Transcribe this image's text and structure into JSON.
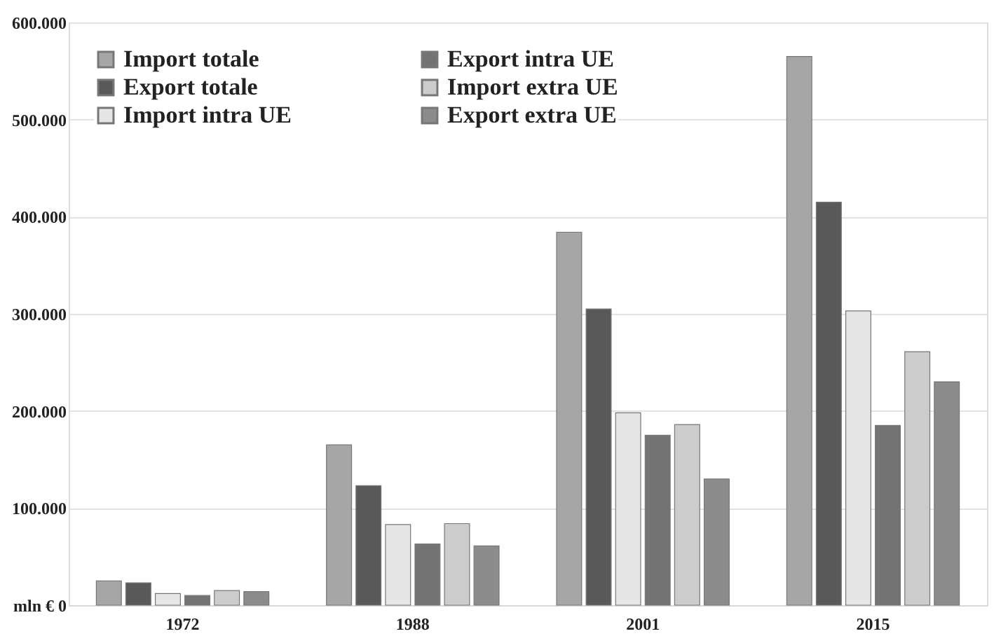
{
  "chart_data": {
    "type": "bar",
    "categories": [
      "1972",
      "1988",
      "2001",
      "2015"
    ],
    "series": [
      {
        "name": "Import totale",
        "color": "#a6a6a6",
        "values": [
          25000,
          165000,
          384000,
          565000
        ]
      },
      {
        "name": "Export totale",
        "color": "#595959",
        "values": [
          23000,
          123000,
          305000,
          415000
        ]
      },
      {
        "name": "Import intra UE",
        "color": "#e6e6e6",
        "values": [
          12000,
          83000,
          198000,
          303000
        ]
      },
      {
        "name": "Export intra UE",
        "color": "#737373",
        "values": [
          10000,
          63000,
          175000,
          185000
        ]
      },
      {
        "name": "Import extra UE",
        "color": "#cccccc",
        "values": [
          15000,
          84000,
          186000,
          261000
        ]
      },
      {
        "name": "Export extra UE",
        "color": "#8c8c8c",
        "values": [
          14000,
          61000,
          130000,
          230000
        ]
      }
    ],
    "ylim": [
      0,
      600000
    ],
    "yticks": [
      {
        "value": 0,
        "label": "mln € 0"
      },
      {
        "value": 100000,
        "label": "100.000"
      },
      {
        "value": 200000,
        "label": "200.000"
      },
      {
        "value": 300000,
        "label": "300.000"
      },
      {
        "value": 400000,
        "label": "400.000"
      },
      {
        "value": 500000,
        "label": "500.000"
      },
      {
        "value": 600000,
        "label": "600.000"
      }
    ],
    "grid": "y",
    "legend": "top left"
  }
}
